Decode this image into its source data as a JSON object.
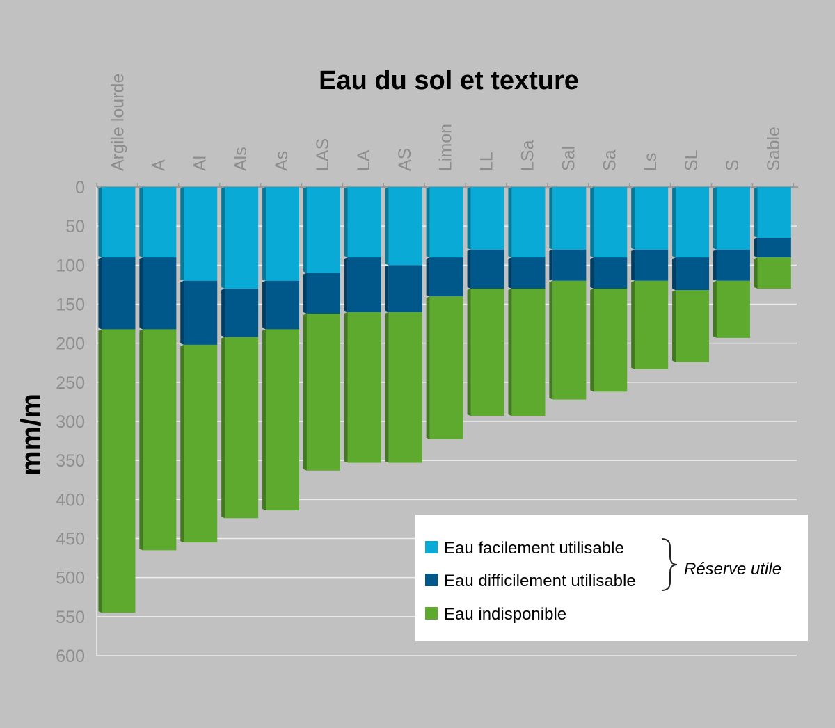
{
  "chart_data": {
    "type": "bar",
    "stacked": true,
    "orientation": "vertical-inverted",
    "title": "Eau du sol et texture",
    "ylabel": "mm/m",
    "ylim": [
      0,
      600
    ],
    "yticks": [
      0,
      50,
      100,
      150,
      200,
      250,
      300,
      350,
      400,
      450,
      500,
      550,
      600
    ],
    "grid": true,
    "legend_position": "bottom-right",
    "categories": [
      "Argile lourde",
      "A",
      "Al",
      "Als",
      "As",
      "LAS",
      "LA",
      "AS",
      "Limon",
      "LL",
      "LSa",
      "Sal",
      "Sa",
      "Ls",
      "SL",
      "S",
      "Sable"
    ],
    "series": [
      {
        "name": "Eau facilement utilisable",
        "color": "#0aaad6",
        "values": [
          90,
          90,
          120,
          130,
          120,
          110,
          90,
          100,
          90,
          80,
          90,
          80,
          90,
          80,
          90,
          80,
          65
        ]
      },
      {
        "name": "Eau difficilement utilisable",
        "color": "#00578a",
        "values": [
          92,
          92,
          82,
          62,
          62,
          52,
          70,
          60,
          50,
          50,
          40,
          40,
          40,
          40,
          42,
          40,
          25
        ]
      },
      {
        "name": "Eau indisponible",
        "color": "#5daa2e",
        "values": [
          363,
          283,
          253,
          232,
          232,
          201,
          193,
          193,
          183,
          163,
          163,
          152,
          132,
          113,
          92,
          73,
          40
        ]
      }
    ],
    "annotation": {
      "text": "Réserve utile",
      "applies_to": [
        "Eau facilement utilisable",
        "Eau difficilement utilisable"
      ]
    },
    "colors": {
      "background": "#c1c1c1",
      "grid": "#ececec",
      "tick_label": "#8e8e8e",
      "legend_bg": "#ffffff"
    }
  }
}
